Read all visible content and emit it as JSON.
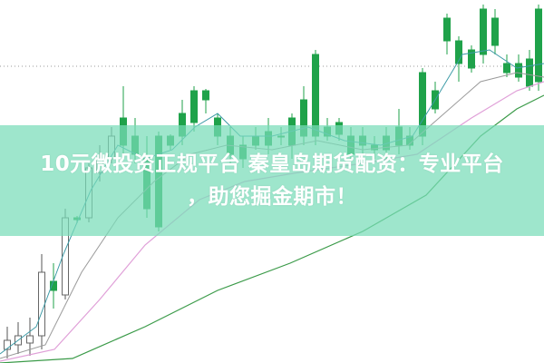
{
  "article": {
    "title_line1": "10元微投资正规平台 秦皇岛期货配资：专业平台",
    "title_line2": "，助您掘金期市！"
  },
  "colors": {
    "up": "#d0242b",
    "down": "#1fa24a",
    "band": "#78dcb9",
    "ma_short": "#3c9aa6",
    "ma_mid": "#e0a0d8",
    "ma_long": "#3a9a48"
  }
}
